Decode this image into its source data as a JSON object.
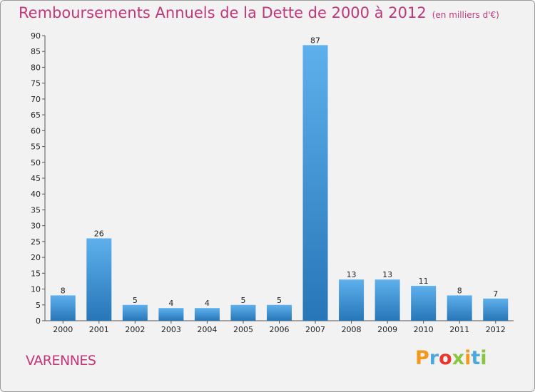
{
  "header": {
    "title": "Remboursements Annuels de la Dette de 2000 à 2012",
    "unit_note": "(en milliers d'€)"
  },
  "footer": {
    "commune": "VARENNES",
    "brand": "Proxiti"
  },
  "colors": {
    "title": "#c2367a",
    "bar_top": "#5eb0ec",
    "bar_bottom": "#2776b8",
    "frame": "#f2f2f2"
  },
  "chart_data": {
    "type": "bar",
    "categories": [
      "2000",
      "2001",
      "2002",
      "2003",
      "2004",
      "2005",
      "2006",
      "2007",
      "2008",
      "2009",
      "2010",
      "2011",
      "2012"
    ],
    "values": [
      8,
      26,
      5,
      4,
      4,
      5,
      5,
      87,
      13,
      13,
      11,
      8,
      7
    ],
    "ylim": [
      0,
      90
    ],
    "yticks": [
      0,
      5,
      10,
      15,
      20,
      25,
      30,
      35,
      40,
      45,
      50,
      55,
      60,
      65,
      70,
      75,
      80,
      85,
      90
    ],
    "grid": false,
    "legend": "none"
  }
}
